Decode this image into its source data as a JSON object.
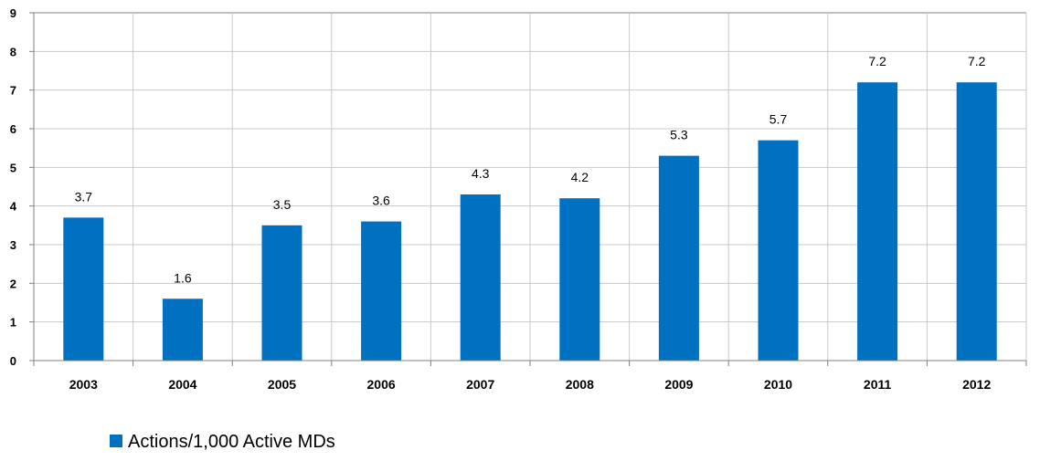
{
  "chart_data": {
    "type": "bar",
    "categories": [
      "2003",
      "2004",
      "2005",
      "2006",
      "2007",
      "2008",
      "2009",
      "2010",
      "2011",
      "2012"
    ],
    "series": [
      {
        "name": "Actions/1,000 Active MDs",
        "values": [
          3.7,
          1.6,
          3.5,
          3.6,
          4.3,
          4.2,
          5.3,
          5.7,
          7.2,
          7.2
        ],
        "color": "#0070C0"
      }
    ],
    "data_labels": [
      "3.7",
      "1.6",
      "3.5",
      "3.6",
      "4.3",
      "4.2",
      "5.3",
      "5.7",
      "7.2",
      "7.2"
    ],
    "ylim": [
      0,
      9
    ],
    "yticks": [
      "0",
      "1",
      "2",
      "3",
      "4",
      "5",
      "6",
      "7",
      "8",
      "9"
    ],
    "grid": true,
    "legend_position": "bottom-left",
    "gridline_color": "#C8C8C8",
    "axis_color": "#808080"
  }
}
